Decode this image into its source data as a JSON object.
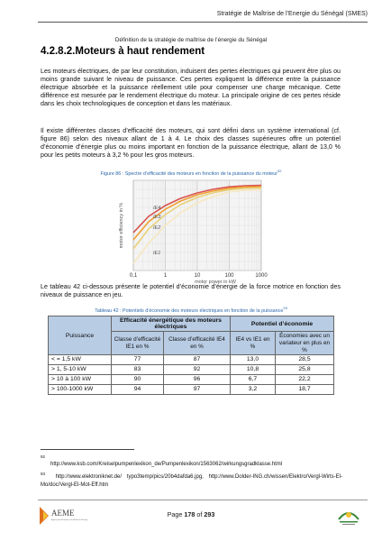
{
  "header": {
    "title": "Stratégie de Maîtrise de l’Energie du Sénégal (SMES)",
    "subtitle": "Définition de la stratégie de maîtrise de l’énergie du Sénégal"
  },
  "section": {
    "title": "4.2.8.2.Moteurs à haut rendement"
  },
  "paragraphs": {
    "p1": "Les moteurs électriques, de par leur constitution, induisent des pertes électriques qui peuvent être plus ou moins grande suivant le niveau de puissance. Ces pertes expliquent la différence entre la puissance électrique absorbée et la puissance réellement utile pour compenser une charge mécanique. Cette différence est mesurée par le rendement électrique du moteur. La principale origine de ces pertes réside dans les choix technologiques de conception et dans les matériaux.",
    "p2": "Il existe différentes classes d’efficacité des moteurs, qui sont défini dans un système international (cf. figure 86) selon des niveaux allant de 1 à 4. Le choix des classes supérieures offre un potentiel d’économie d’énergie plus ou moins important en fonction de la puissance électrique, allant de 13,0 % pour les petits moteurs à 3,2 % pour les gros moteurs.",
    "p3": "Le tableau 42 ci-dessous présente le potentiel d’économie d’énergie de la force motrice en fonction des niveaux de puissance en jeu."
  },
  "figure": {
    "caption": "Figure 86 : Spectre d’efficacité des moteurs en fonction de la puissance du moteur",
    "caption_ref": "92"
  },
  "chart_data": {
    "type": "line",
    "xlabel": "motor power  in kW",
    "ylabel": "motor efficiency  in %",
    "x_scale": "log",
    "xlim": [
      0.1,
      1000
    ],
    "x_ticks": [
      "0,1",
      "1",
      "10",
      "100",
      "1000"
    ],
    "ylim": [
      50,
      100
    ],
    "grid": true,
    "series": [
      {
        "name": "IE4",
        "color": "#d9534f",
        "x": [
          0.1,
          0.3,
          1,
          3,
          10,
          30,
          100,
          300,
          1000
        ],
        "y": [
          71,
          80,
          86,
          90,
          93,
          95,
          96.4,
          97,
          97.2
        ]
      },
      {
        "name": "IE3",
        "color": "#f0a030",
        "x": [
          0.1,
          0.3,
          1,
          3,
          10,
          30,
          100,
          300,
          1000
        ],
        "y": [
          67,
          77,
          84,
          88.5,
          92,
          94,
          95.6,
          96.3,
          96.5
        ]
      },
      {
        "name": "IE2",
        "color": "#e8d17a",
        "x": [
          0.1,
          0.3,
          1,
          3,
          10,
          30,
          100,
          300,
          1000
        ],
        "y": [
          62,
          73,
          81,
          86.5,
          90.5,
          93,
          94.8,
          95.6,
          95.8
        ]
      },
      {
        "name": "IE1",
        "color": "#f7e7c0",
        "x": [
          0.1,
          0.3,
          1,
          3,
          10,
          30,
          100,
          300,
          1000
        ],
        "y": [
          54,
          65,
          75,
          82,
          87.5,
          91,
          93.5,
          94.5,
          94.8
        ]
      }
    ]
  },
  "table": {
    "caption": "Tableau 42 : Potentiels d’économie des moteurs électriques en fonction de la puissance",
    "caption_ref": "93",
    "head_power": "Puissance",
    "head_efficiency": "Efficacité énergétique des moteurs électriques",
    "head_potential": "Potentiel d’économie",
    "sub_ie1": "Classe d’efficacité IE1 en %",
    "sub_ie4": "Classe d’efficacité IE4 en %",
    "sub_vs": "IE4 vs IE1 en %",
    "sub_var": "Économies avec un variateur en plus en %",
    "rows": [
      {
        "power": "< = 1,5 kW",
        "ie1": "77",
        "ie4": "87",
        "vs": "13,0",
        "var": "28,5"
      },
      {
        "power": "> 1, 5-10 kW",
        "ie1": "83",
        "ie4": "92",
        "vs": "10,8",
        "var": "25,8"
      },
      {
        "power": "> 10 à 100 kW",
        "ie1": "90",
        "ie4": "96",
        "vs": "6,7",
        "var": "22,2"
      },
      {
        "power": "> 100-1000 kW",
        "ie1": "94",
        "ie4": "97",
        "vs": "3,2",
        "var": "18,7"
      }
    ]
  },
  "footnotes": {
    "n92": "92",
    "f92": "http://www.ksb.com/Kreiselpumpenlexikon_de/Pumpenlexikon/1563062/wirkungsgradklasse.html",
    "n93": "93",
    "f93": "http://www.elektroniknet.de/ typo3temp/pics/20b4dafda6.jpg, http://www.Dolder-ING.ch/wissen/Elektro/Vergl-Wirts-El-Mo/doc/Vergl-El-Mot-Eff.htm"
  },
  "footer": {
    "page_prefix": "Page",
    "page": "178",
    "page_of": "of",
    "total": "293",
    "logo_left": "AEME",
    "logo_left_sub": "Agence pour l’Economie et la Maîtrise de l’Energie"
  }
}
